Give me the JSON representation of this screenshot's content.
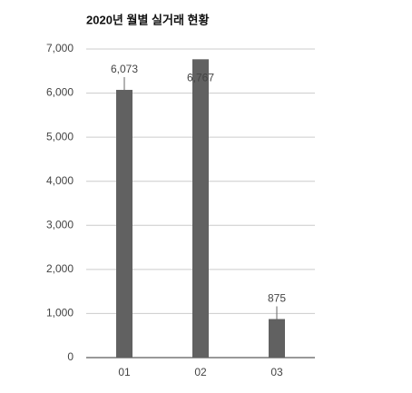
{
  "chart_data": {
    "type": "bar",
    "title": "2020년 월별 실거래 현황",
    "categories": [
      "01",
      "02",
      "03"
    ],
    "values": [
      6073,
      6767,
      875
    ],
    "value_labels": [
      "6,073",
      "6,767",
      "875"
    ],
    "color": "#616161",
    "ylim": [
      0,
      7000
    ],
    "yticks": [
      0,
      {
        "value": 1000,
        "label": "1,000"
      },
      {
        "value": 2000,
        "label": "2,000"
      },
      {
        "value": 3000,
        "label": "3,000"
      },
      {
        "value": 4000,
        "label": "4,000"
      },
      {
        "value": 5000,
        "label": "5,000"
      },
      {
        "value": 6000,
        "label": "6,000"
      },
      {
        "value": 7000,
        "label": "7,000"
      }
    ],
    "grid": true
  }
}
